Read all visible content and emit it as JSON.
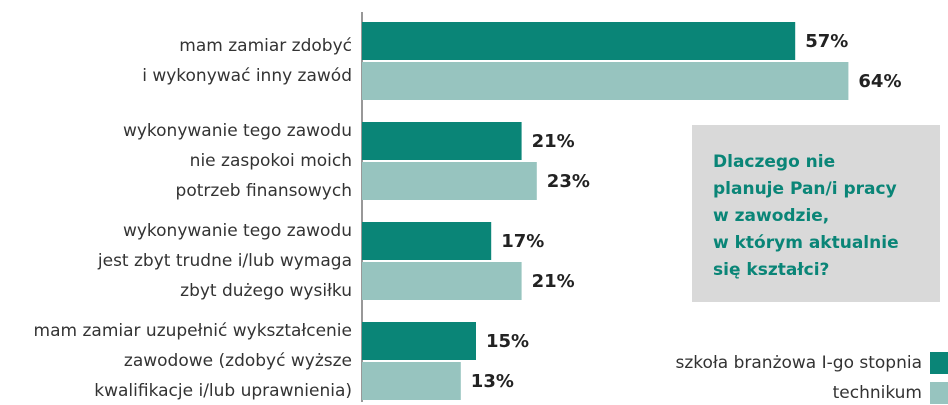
{
  "chart_data": {
    "type": "bar",
    "orientation": "horizontal",
    "categories": [
      [
        "mam zamiar zdobyć",
        "i wykonywać inny zawód"
      ],
      [
        "wykonywanie tego zawodu",
        "nie zaspokoi moich",
        "potrzeb finansowych"
      ],
      [
        "wykonywanie tego zawodu",
        "jest zbyt trudne i/lub wymaga",
        "zbyt dużego wysiłku"
      ],
      [
        "mam zamiar uzupełnić wykształcenie",
        "zawodowe (zdobyć wyższe",
        "kwalifikacje i/lub uprawnienia)"
      ]
    ],
    "series": [
      {
        "name": "szkoła branżowa I-go stopnia",
        "color": "#0a8577",
        "values": [
          57,
          21,
          17,
          15
        ],
        "value_labels": [
          "57%",
          "21%",
          "17%",
          "15%"
        ]
      },
      {
        "name": "technikum",
        "color": "#97c4bf",
        "values": [
          64,
          23,
          21,
          13
        ],
        "value_labels": [
          "64%",
          "23%",
          "21%",
          "13%"
        ]
      }
    ],
    "xlim": [
      0,
      70
    ],
    "annotation": [
      "Dlaczego nie",
      "planuje Pan/i pracy",
      "w zawodzie,",
      "w którym aktualnie",
      "się kształci?"
    ],
    "legend": "lower right"
  }
}
